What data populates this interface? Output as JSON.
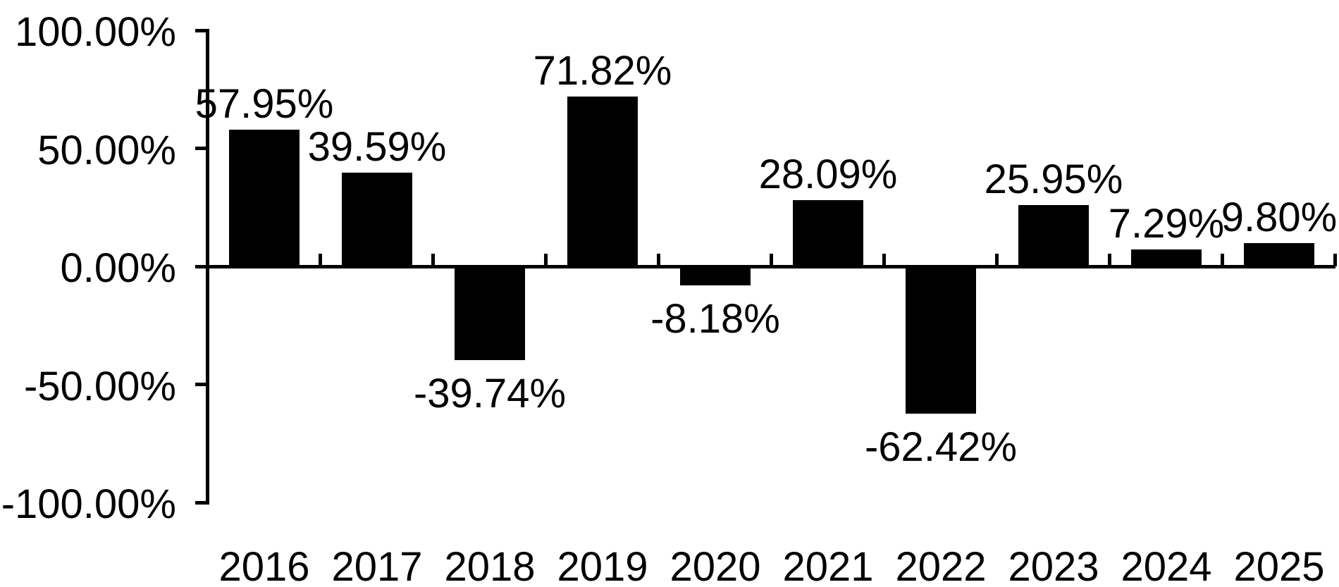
{
  "chart_data": {
    "type": "bar",
    "title": "",
    "xlabel": "",
    "ylabel": "",
    "categories": [
      "2016",
      "2017",
      "2018",
      "2019",
      "2020",
      "2021",
      "2022",
      "2023",
      "2024",
      "2025"
    ],
    "values": [
      57.95,
      39.59,
      -39.74,
      71.82,
      -8.18,
      28.09,
      -62.42,
      25.95,
      7.29,
      9.8
    ],
    "bar_labels": [
      "57.95%",
      "39.59%",
      "-39.74%",
      "71.82%",
      "-8.18%",
      "28.09%",
      "-62.42%",
      "25.95%",
      "7.29%",
      "9.80%"
    ],
    "y_axis": {
      "min": -100,
      "max": 100,
      "ticks": [
        {
          "value": 100,
          "label": "100.00%"
        },
        {
          "value": 50,
          "label": "50.00%"
        },
        {
          "value": 0,
          "label": "0.00%"
        },
        {
          "value": -50,
          "label": "-50.00%"
        },
        {
          "value": -100,
          "label": "-100.00%"
        }
      ]
    },
    "grid": false,
    "legend": null,
    "colors": {
      "bar": "#000000",
      "axis": "#000000",
      "text": "#000000",
      "background": "#ffffff"
    }
  }
}
